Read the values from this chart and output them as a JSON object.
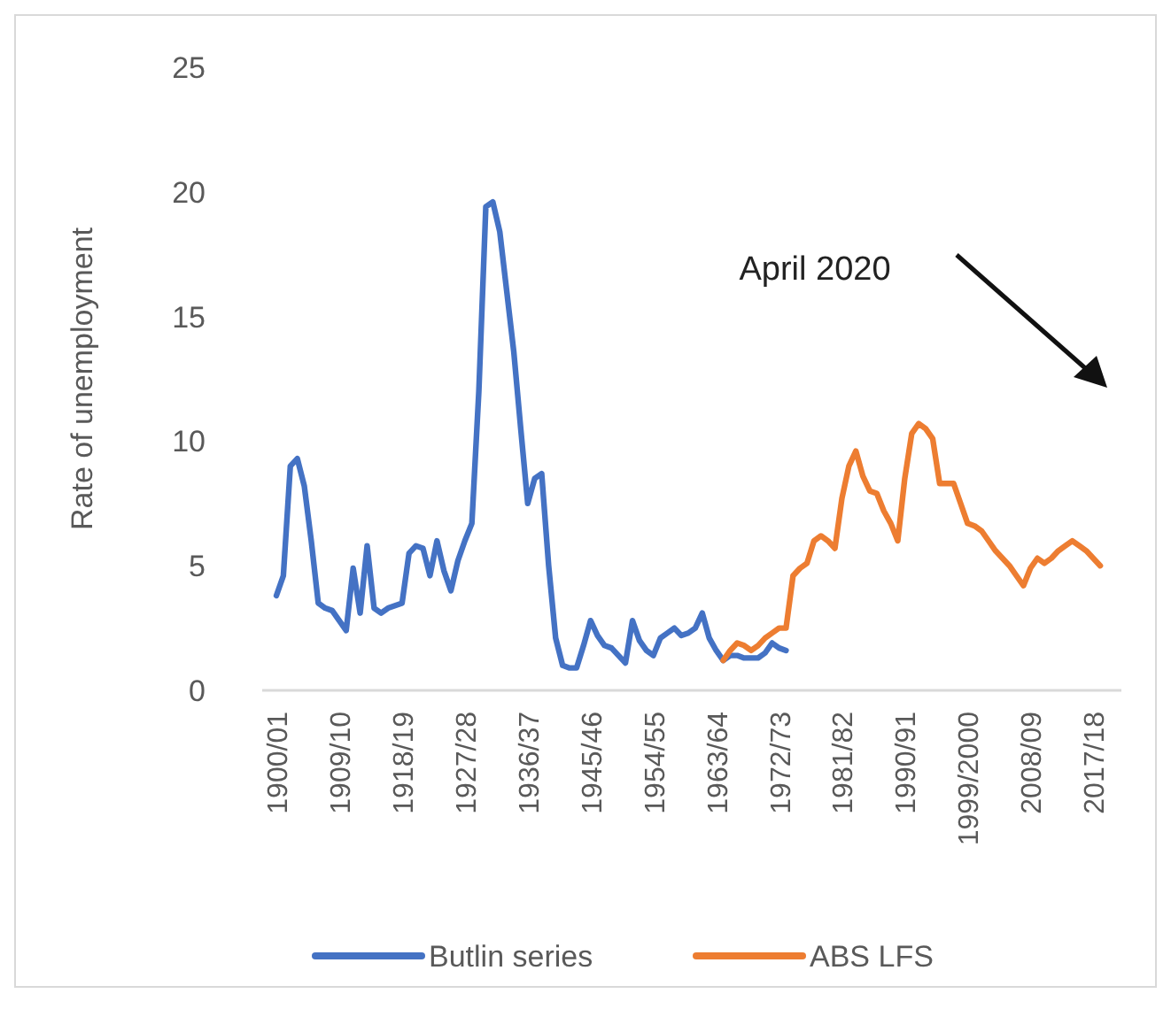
{
  "chart_data": {
    "type": "line",
    "ylabel": "Rate of unemployment",
    "categories": [
      "1900/01",
      null,
      null,
      null,
      null,
      null,
      null,
      null,
      null,
      "1909/10",
      null,
      null,
      null,
      null,
      null,
      null,
      null,
      null,
      "1918/19",
      null,
      null,
      null,
      null,
      null,
      null,
      null,
      null,
      "1927/28",
      null,
      null,
      null,
      null,
      null,
      null,
      null,
      null,
      "1936/37",
      null,
      null,
      null,
      null,
      null,
      null,
      null,
      null,
      "1945/46",
      null,
      null,
      null,
      null,
      null,
      null,
      null,
      null,
      "1954/55",
      null,
      null,
      null,
      null,
      null,
      null,
      null,
      null,
      "1963/64",
      null,
      null,
      null,
      null,
      null,
      null,
      null,
      null,
      "1972/73",
      null,
      null,
      null,
      null,
      null,
      null,
      null,
      null,
      "1981/82",
      null,
      null,
      null,
      null,
      null,
      null,
      null,
      null,
      "1990/91",
      null,
      null,
      null,
      null,
      null,
      null,
      null,
      null,
      "1999/2000",
      null,
      null,
      null,
      null,
      null,
      null,
      null,
      null,
      "2008/09",
      null,
      null,
      null,
      null,
      null,
      null,
      null,
      null,
      "2017/18",
      null,
      null
    ],
    "series": [
      {
        "name": "Butlin series",
        "color": "#4472c4",
        "values": [
          3.8,
          4.6,
          9.0,
          9.3,
          8.2,
          6.0,
          3.5,
          3.3,
          3.2,
          2.8,
          2.4,
          4.9,
          3.1,
          5.8,
          3.3,
          3.1,
          3.3,
          3.4,
          3.5,
          5.5,
          5.8,
          5.7,
          4.6,
          6.0,
          4.8,
          4.0,
          5.2,
          6.0,
          6.7,
          12.0,
          19.4,
          19.6,
          18.4,
          16.0,
          13.6,
          10.5,
          7.5,
          8.5,
          8.7,
          5.0,
          2.1,
          1.0,
          0.9,
          0.9,
          1.8,
          2.8,
          2.2,
          1.8,
          1.7,
          1.4,
          1.1,
          2.8,
          2.0,
          1.6,
          1.4,
          2.1,
          2.3,
          2.5,
          2.2,
          2.3,
          2.5,
          3.1,
          2.1,
          1.6,
          1.2,
          1.4,
          1.4,
          1.3,
          1.3,
          1.3,
          1.5,
          1.9,
          1.7,
          1.6,
          null,
          null,
          null,
          null,
          null,
          null,
          null,
          null,
          null,
          null,
          null,
          null,
          null,
          null,
          null,
          null,
          null,
          null,
          null,
          null,
          null,
          null,
          null,
          null,
          null,
          null,
          null,
          null,
          null,
          null,
          null,
          null,
          null,
          null,
          null,
          null,
          null,
          null,
          null,
          null,
          null,
          null,
          null,
          null,
          null,
          null
        ]
      },
      {
        "name": "ABS LFS",
        "color": "#ed7d31",
        "values": [
          null,
          null,
          null,
          null,
          null,
          null,
          null,
          null,
          null,
          null,
          null,
          null,
          null,
          null,
          null,
          null,
          null,
          null,
          null,
          null,
          null,
          null,
          null,
          null,
          null,
          null,
          null,
          null,
          null,
          null,
          null,
          null,
          null,
          null,
          null,
          null,
          null,
          null,
          null,
          null,
          null,
          null,
          null,
          null,
          null,
          null,
          null,
          null,
          null,
          null,
          null,
          null,
          null,
          null,
          null,
          null,
          null,
          null,
          null,
          null,
          null,
          null,
          null,
          null,
          1.2,
          1.6,
          1.9,
          1.8,
          1.6,
          1.8,
          2.1,
          2.3,
          2.5,
          2.5,
          4.6,
          4.9,
          5.1,
          6.0,
          6.2,
          6.0,
          5.7,
          7.7,
          9.0,
          9.6,
          8.6,
          8.0,
          7.9,
          7.2,
          6.7,
          6.0,
          8.5,
          10.3,
          10.7,
          10.5,
          10.1,
          8.3,
          8.3,
          8.3,
          7.5,
          6.7,
          6.6,
          6.4,
          6.0,
          5.6,
          5.3,
          5.0,
          4.6,
          4.2,
          4.9,
          5.3,
          5.1,
          5.3,
          5.6,
          5.8,
          6.0,
          5.8,
          5.6,
          5.3,
          5.0,
          null
        ]
      }
    ],
    "ylim": [
      0,
      25
    ],
    "yticks": [
      0,
      5,
      10,
      15,
      20,
      25
    ],
    "grid": false,
    "legend": "bottom",
    "line_style": "solid",
    "marker": "none",
    "annotations": [
      "April 2020"
    ]
  }
}
